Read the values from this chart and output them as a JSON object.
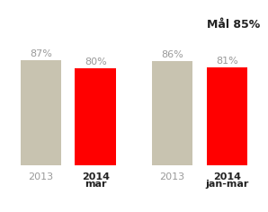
{
  "groups": [
    {
      "label_top": [
        "87%",
        "80%"
      ],
      "label_bottom_year": [
        "2013",
        "2014"
      ],
      "label_bottom_sub": [
        "",
        "mar"
      ],
      "values": [
        87,
        80
      ],
      "colors": [
        "#C8C3B0",
        "#FF0000"
      ]
    },
    {
      "label_top": [
        "86%",
        "81%"
      ],
      "label_bottom_year": [
        "2013",
        "2014"
      ],
      "label_bottom_sub": [
        "",
        "jan-mar"
      ],
      "values": [
        86,
        81
      ],
      "colors": [
        "#C8C3B0",
        "#FF0000"
      ]
    }
  ],
  "maal_text": "Mål 85%",
  "background_color": "#FFFFFF",
  "ylim": [
    0,
    100
  ],
  "gray_color": "#999999",
  "black_color": "#222222"
}
